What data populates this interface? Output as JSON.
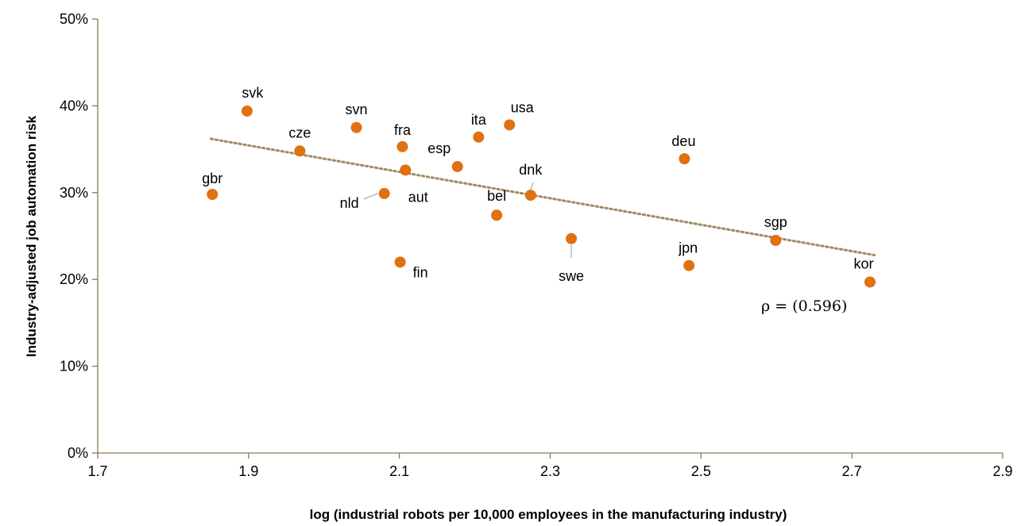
{
  "chart_data": {
    "type": "scatter",
    "title": "",
    "xlabel": "log (industrial robots per 10,000 employees in the manufacturing industry)",
    "ylabel": "Industry-adjusted job automation risk",
    "xlim": [
      1.7,
      2.9
    ],
    "ylim": [
      0,
      0.5
    ],
    "x_ticks": [
      "1.7",
      "1.9",
      "2.1",
      "2.3",
      "2.5",
      "2.7",
      "2.9"
    ],
    "y_ticks": [
      "0%",
      "10%",
      "20%",
      "30%",
      "40%",
      "50%"
    ],
    "grid": false,
    "legend": "none",
    "marker_color": "#E07010",
    "trendline_color": "#A08A60",
    "points": [
      {
        "label": "gbr",
        "x": 1.852,
        "y": 0.298
      },
      {
        "label": "svk",
        "x": 1.898,
        "y": 0.394
      },
      {
        "label": "cze",
        "x": 1.968,
        "y": 0.348
      },
      {
        "label": "svn",
        "x": 2.043,
        "y": 0.375
      },
      {
        "label": "nld",
        "x": 2.08,
        "y": 0.299
      },
      {
        "label": "fin",
        "x": 2.101,
        "y": 0.22
      },
      {
        "label": "fra",
        "x": 2.104,
        "y": 0.353
      },
      {
        "label": "aut",
        "x": 2.108,
        "y": 0.326
      },
      {
        "label": "esp",
        "x": 2.177,
        "y": 0.33
      },
      {
        "label": "ita",
        "x": 2.205,
        "y": 0.364
      },
      {
        "label": "bel",
        "x": 2.229,
        "y": 0.274
      },
      {
        "label": "usa",
        "x": 2.246,
        "y": 0.378
      },
      {
        "label": "dnk",
        "x": 2.274,
        "y": 0.297
      },
      {
        "label": "swe",
        "x": 2.328,
        "y": 0.247
      },
      {
        "label": "deu",
        "x": 2.478,
        "y": 0.339
      },
      {
        "label": "jpn",
        "x": 2.484,
        "y": 0.216
      },
      {
        "label": "sgp",
        "x": 2.599,
        "y": 0.245
      },
      {
        "label": "kor",
        "x": 2.724,
        "y": 0.197
      }
    ],
    "trendline": {
      "x": [
        1.85,
        2.73
      ],
      "y": [
        0.362,
        0.228
      ],
      "style": "dotted"
    },
    "annotation": "ρ = (0.596)"
  }
}
